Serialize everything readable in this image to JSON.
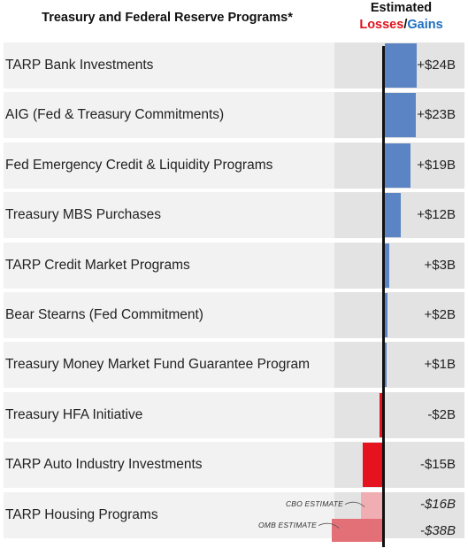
{
  "header": {
    "title": "Treasury and Federal Reserve Programs*",
    "estimated": "Estimated",
    "losses": "Losses",
    "slash": "/",
    "gains": "Gains"
  },
  "colors": {
    "gain": "#5b84c4",
    "loss": "#e5131d",
    "cbo_loss": "#f0aeb2",
    "omb_loss": "#e27076",
    "band_light": "#f2f2f2",
    "band_dark": "#e3e3e3"
  },
  "chart_data": {
    "type": "bar",
    "orientation": "horizontal",
    "title": "Treasury and Federal Reserve Programs*",
    "value_header": "Estimated Losses/Gains",
    "unit": "$B",
    "categories": [
      "TARP Bank Investments",
      "AIG (Fed & Treasury Commitments)",
      "Fed Emergency Credit & Liquidity Programs",
      "Treasury MBS Purchases",
      "TARP Credit Market Programs",
      "Bear Stearns (Fed Commitment)",
      "Treasury Money Market Fund Guarantee Program",
      "Treasury HFA Initiative",
      "TARP Auto Industry Investments",
      "TARP Housing Programs"
    ],
    "values": [
      24,
      23,
      19,
      12,
      3,
      2,
      1,
      -2,
      -15,
      -16
    ],
    "value_labels": [
      "+$24B",
      "+$23B",
      "+$19B",
      "+$12B",
      "+$3B",
      "+$2B",
      "+$1B",
      "-$2B",
      "-$15B",
      "-$16B"
    ],
    "housing_estimates": [
      {
        "note": "CBO ESTIMATE",
        "value": -16,
        "label": "-$16B"
      },
      {
        "note": "OMB ESTIMATE",
        "value": -38,
        "label": "-$38B"
      }
    ]
  }
}
